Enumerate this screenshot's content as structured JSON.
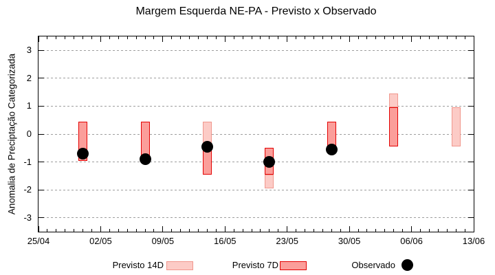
{
  "chart_data": {
    "type": "bar",
    "title": "Margem Esquerda NE-PA - Previsto x Observado",
    "ylabel": "Anomalia de Preciptação Categorizada",
    "xlabel": "",
    "ylim": [
      -3.5,
      3.5
    ],
    "y_ticks": [
      3,
      2,
      1,
      0,
      -1,
      -2,
      -3
    ],
    "x_ticklabels": [
      "25/04",
      "02/05",
      "09/05",
      "16/05",
      "23/05",
      "30/05",
      "06/06",
      "13/06"
    ],
    "x_range_days": 49,
    "x_major_every_days": 7,
    "grid": "horizontal-dashed",
    "grid_color": "#9c9c9c",
    "legend_position": "below-plot",
    "series_styles": {
      "Previsto 14D": {
        "fill": "#fccbc6",
        "border": "#f0968c"
      },
      "Previsto 7D": {
        "fill": "#fb9e9a",
        "border": "#e30000"
      },
      "Observado": {
        "fill": "#000000"
      }
    },
    "legend": [
      {
        "label": "Previsto 14D",
        "swatch": "bar",
        "series": "Previsto 14D"
      },
      {
        "label": "Previsto 7D",
        "swatch": "bar",
        "series": "Previsto 7D"
      },
      {
        "label": "Observado",
        "swatch": "dot",
        "series": "Observado"
      }
    ],
    "bars": [
      {
        "label": "30/04",
        "day_offset": 5,
        "segments": [
          {
            "series": "Previsto 7D",
            "from": -0.95,
            "to": 0.45
          }
        ],
        "observed": -0.7
      },
      {
        "label": "07/05",
        "day_offset": 12,
        "segments": [
          {
            "series": "Previsto 7D",
            "from": -0.95,
            "to": 0.45
          }
        ],
        "observed": -0.9
      },
      {
        "label": "14/05",
        "day_offset": 19,
        "segments": [
          {
            "series": "Previsto 14D",
            "from": -0.55,
            "to": 0.45
          },
          {
            "series": "Previsto 7D",
            "from": -1.45,
            "to": -0.55
          }
        ],
        "observed": -0.45
      },
      {
        "label": "21/05",
        "day_offset": 26,
        "segments": [
          {
            "series": "Previsto 14D",
            "from": -1.95,
            "to": -1.45
          },
          {
            "series": "Previsto 7D",
            "from": -1.45,
            "to": -0.5
          }
        ],
        "observed": -1.0
      },
      {
        "label": "28/05",
        "day_offset": 33,
        "segments": [
          {
            "series": "Previsto 7D",
            "from": -0.45,
            "to": 0.45
          }
        ],
        "observed": -0.55
      },
      {
        "label": "04/06",
        "day_offset": 40,
        "segments": [
          {
            "series": "Previsto 14D",
            "from": 0.95,
            "to": 1.45
          },
          {
            "series": "Previsto 7D",
            "from": -0.45,
            "to": 0.95
          }
        ],
        "observed": null
      },
      {
        "label": "11/06",
        "day_offset": 47,
        "segments": [
          {
            "series": "Previsto 14D",
            "from": -0.45,
            "to": 0.95
          }
        ],
        "observed": null
      }
    ]
  }
}
